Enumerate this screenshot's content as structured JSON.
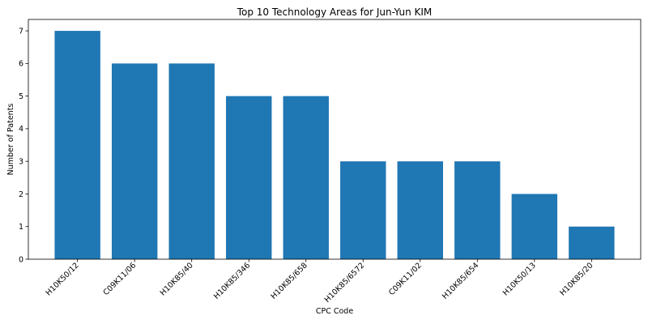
{
  "chart_data": {
    "type": "bar",
    "title": "Top 10 Technology Areas for Jun-Yun KIM",
    "xlabel": "CPC Code",
    "ylabel": "Number of Patents",
    "categories": [
      "H10K50/12",
      "C09K11/06",
      "H10K85/40",
      "H10K85/346",
      "H10K85/658",
      "H10K85/6572",
      "C09K11/02",
      "H10K85/654",
      "H10K50/13",
      "H10K85/20"
    ],
    "values": [
      7,
      6,
      6,
      5,
      5,
      3,
      3,
      3,
      2,
      1
    ],
    "ylim": [
      0,
      7.35
    ],
    "yticks": [
      0,
      1,
      2,
      3,
      4,
      5,
      6,
      7
    ],
    "bar_color": "#1f77b4",
    "grid": false,
    "legend": "none"
  }
}
